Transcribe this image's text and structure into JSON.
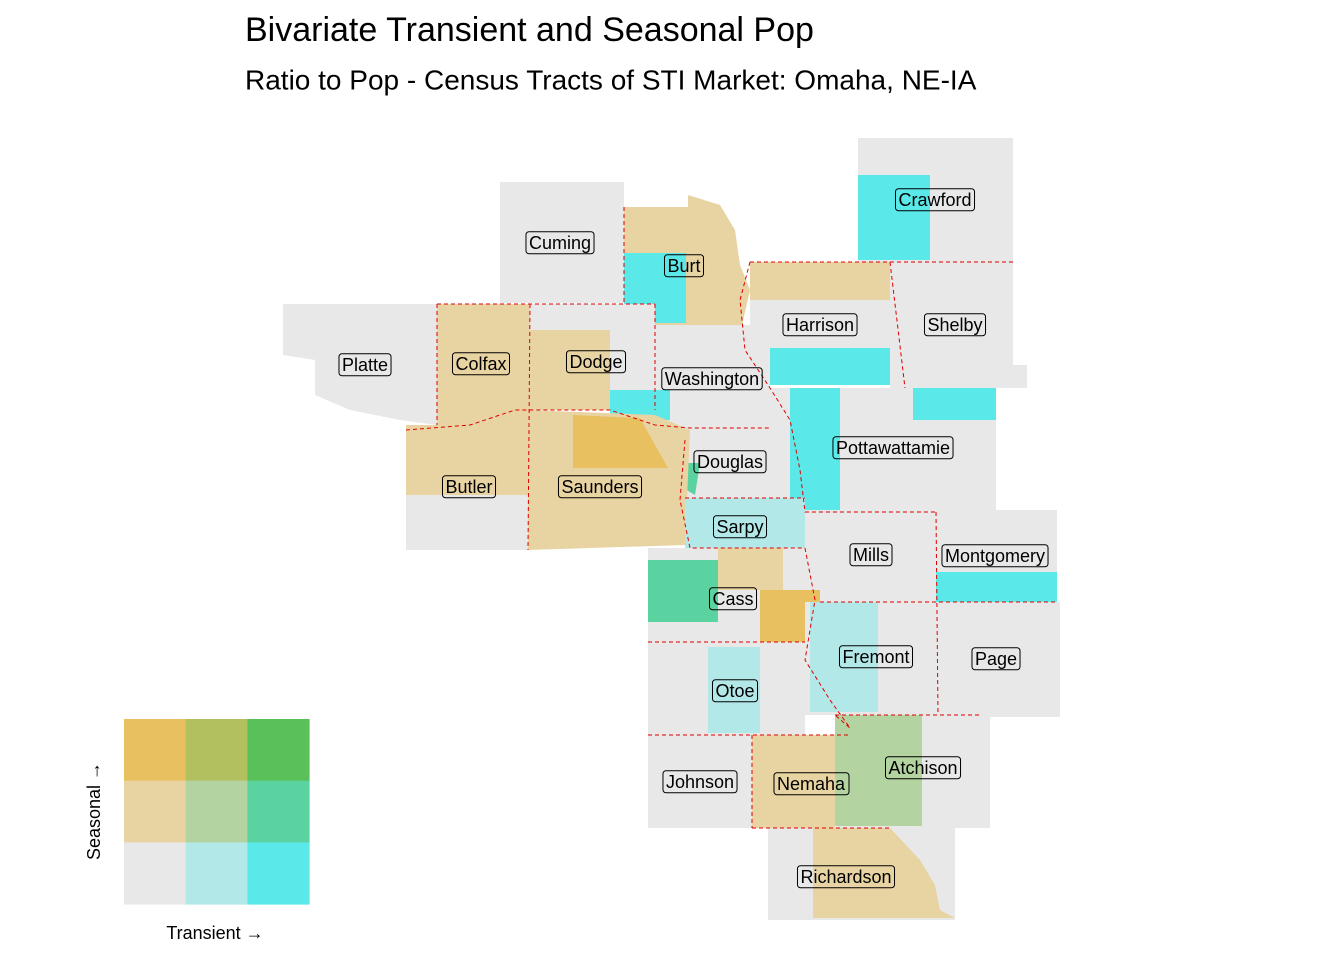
{
  "title": "Bivariate Transient and Seasonal Pop",
  "subtitle": "Ratio to Pop - Census Tracts of STI Market: Omaha, NE-IA",
  "counties": [
    {
      "name": "Crawford"
    },
    {
      "name": "Cuming"
    },
    {
      "name": "Burt"
    },
    {
      "name": "Harrison"
    },
    {
      "name": "Shelby"
    },
    {
      "name": "Platte"
    },
    {
      "name": "Colfax"
    },
    {
      "name": "Dodge"
    },
    {
      "name": "Washington"
    },
    {
      "name": "Pottawattamie"
    },
    {
      "name": "Douglas"
    },
    {
      "name": "Butler"
    },
    {
      "name": "Saunders"
    },
    {
      "name": "Sarpy"
    },
    {
      "name": "Mills"
    },
    {
      "name": "Montgomery"
    },
    {
      "name": "Cass"
    },
    {
      "name": "Fremont"
    },
    {
      "name": "Page"
    },
    {
      "name": "Otoe"
    },
    {
      "name": "Atchison"
    },
    {
      "name": "Johnson"
    },
    {
      "name": "Nemaha"
    },
    {
      "name": "Richardson"
    }
  ],
  "legend": {
    "x_label": "Transient →",
    "y_label": "Seasonal →",
    "colors": [
      [
        "#e8c060",
        "#b3c060",
        "#5ac05a"
      ],
      [
        "#e8d4a2",
        "#b3d3a0",
        "#5ad3a0"
      ],
      [
        "#e8e8e8",
        "#b3e8e8",
        "#5ae8e8"
      ]
    ]
  }
}
